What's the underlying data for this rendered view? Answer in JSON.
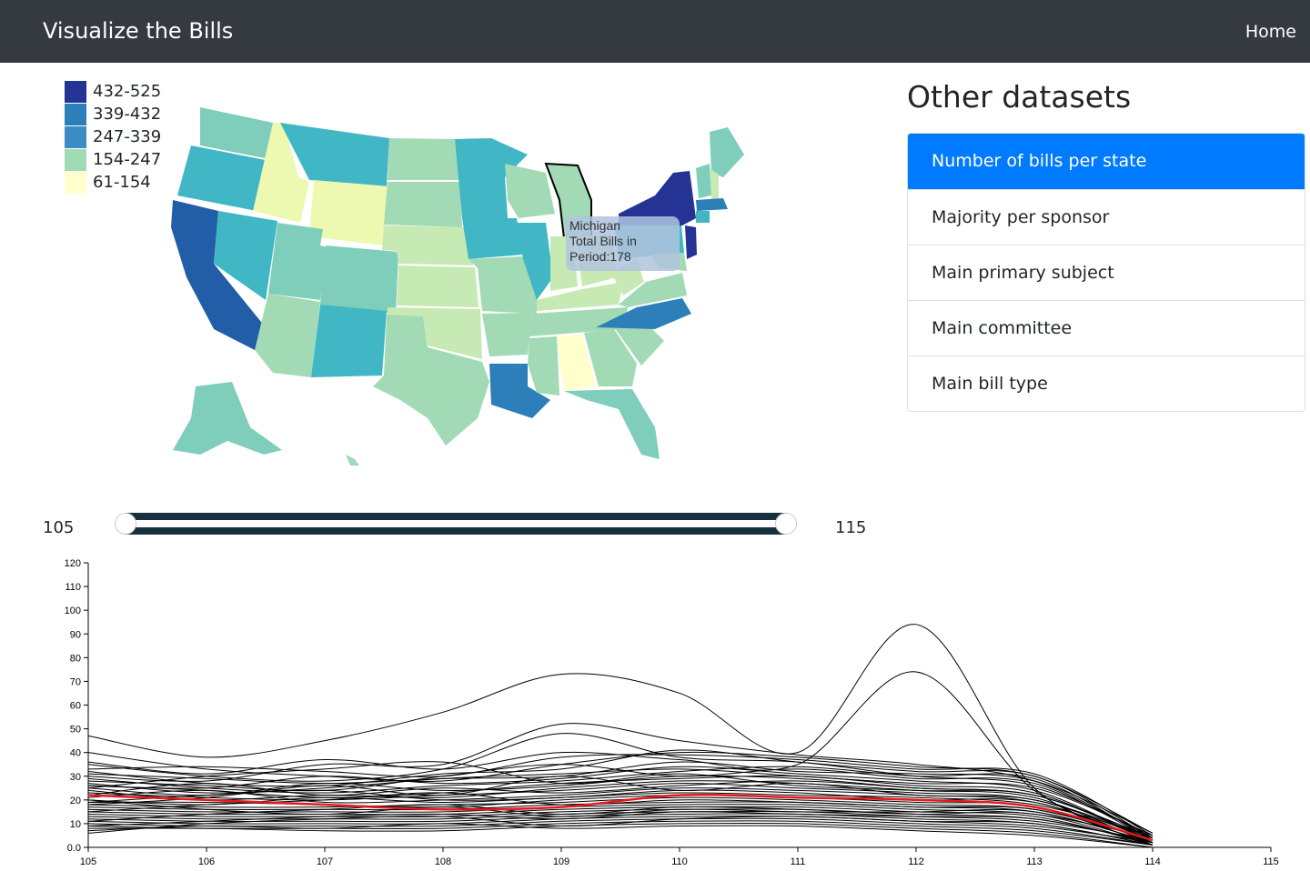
{
  "navbar": {
    "brand": "Visualize the Bills",
    "home": "Home"
  },
  "legend": [
    {
      "label": "432-525",
      "color": "#253494"
    },
    {
      "label": "339-432",
      "color": "#2c7fb8"
    },
    {
      "label": "247-339",
      "color": "#3b8cc4"
    },
    {
      "label": "154-247",
      "color": "#a1dab4"
    },
    {
      "label": "61-154",
      "color": "#ffffcc"
    }
  ],
  "tooltip": {
    "line1": "Michigan",
    "line2": "Total Bills in",
    "line3": "Period:178"
  },
  "sidebar": {
    "title": "Other datasets",
    "items": [
      {
        "label": "Number of bills per state",
        "active": true
      },
      {
        "label": "Majority per sponsor",
        "active": false
      },
      {
        "label": "Main primary subject",
        "active": false
      },
      {
        "label": "Main committee",
        "active": false
      },
      {
        "label": "Main bill type",
        "active": false
      }
    ]
  },
  "slider": {
    "min": "105",
    "max": "115"
  },
  "chart_data": {
    "type": "line",
    "x": [
      105,
      106,
      107,
      108,
      109,
      110,
      111,
      112,
      113,
      114
    ],
    "xticks": [
      "105",
      "106",
      "107",
      "108",
      "109",
      "110",
      "111",
      "112",
      "113",
      "114",
      "115"
    ],
    "yticks": [
      "0.0",
      "10",
      "20",
      "30",
      "40",
      "50",
      "60",
      "70",
      "80",
      "90",
      "100",
      "110",
      "120"
    ],
    "xlim": [
      105,
      115
    ],
    "ylim": [
      0,
      120
    ],
    "highlight_color": "#e41a1c",
    "series": [
      {
        "values": [
          22,
          20,
          18,
          16,
          17,
          22,
          21,
          20,
          17,
          3
        ],
        "highlight": true
      },
      {
        "values": [
          47,
          38,
          45,
          57,
          73,
          65,
          40,
          94,
          25,
          3
        ]
      },
      {
        "values": [
          36,
          31,
          37,
          33,
          40,
          37,
          35,
          74,
          24,
          2
        ]
      },
      {
        "values": [
          30,
          28,
          35,
          35,
          52,
          45,
          39,
          35,
          28,
          4
        ]
      },
      {
        "values": [
          35,
          30,
          28,
          33,
          48,
          38,
          36,
          30,
          26,
          5
        ]
      },
      {
        "values": [
          40,
          33,
          30,
          28,
          35,
          40,
          38,
          34,
          30,
          6
        ]
      },
      {
        "values": [
          28,
          26,
          24,
          30,
          35,
          30,
          33,
          29,
          27,
          3
        ]
      },
      {
        "values": [
          26,
          25,
          30,
          27,
          29,
          34,
          31,
          28,
          24,
          2
        ]
      },
      {
        "values": [
          25,
          22,
          27,
          24,
          26,
          30,
          29,
          25,
          22,
          4
        ]
      },
      {
        "values": [
          24,
          20,
          22,
          21,
          25,
          28,
          27,
          24,
          21,
          1
        ]
      },
      {
        "values": [
          23,
          21,
          20,
          22,
          24,
          27,
          25,
          23,
          20,
          3
        ]
      },
      {
        "values": [
          21,
          24,
          19,
          20,
          22,
          25,
          24,
          22,
          19,
          2
        ]
      },
      {
        "values": [
          20,
          18,
          21,
          19,
          21,
          23,
          22,
          21,
          18,
          5
        ]
      },
      {
        "values": [
          19,
          19,
          18,
          17,
          20,
          22,
          21,
          19,
          17,
          1
        ]
      },
      {
        "values": [
          18,
          17,
          17,
          18,
          19,
          21,
          20,
          18,
          16,
          3
        ]
      },
      {
        "values": [
          17,
          16,
          16,
          16,
          18,
          19,
          19,
          17,
          15,
          2
        ]
      },
      {
        "values": [
          16,
          15,
          15,
          15,
          17,
          18,
          18,
          16,
          14,
          4
        ]
      },
      {
        "values": [
          15,
          14,
          14,
          14,
          16,
          17,
          17,
          15,
          13,
          1
        ]
      },
      {
        "values": [
          14,
          13,
          13,
          13,
          15,
          16,
          16,
          14,
          12,
          2
        ]
      },
      {
        "values": [
          13,
          12,
          12,
          12,
          14,
          15,
          15,
          13,
          11,
          3
        ]
      },
      {
        "values": [
          12,
          11,
          11,
          11,
          13,
          14,
          14,
          12,
          10,
          1
        ]
      },
      {
        "values": [
          11,
          10,
          10,
          10,
          12,
          13,
          13,
          11,
          9,
          2
        ]
      },
      {
        "values": [
          10,
          9,
          9,
          9,
          11,
          12,
          12,
          10,
          8,
          1
        ]
      },
      {
        "values": [
          9,
          8,
          8,
          8,
          10,
          11,
          11,
          9,
          7,
          1
        ]
      },
      {
        "values": [
          8,
          8,
          7,
          7,
          9,
          10,
          10,
          8,
          6,
          0
        ]
      },
      {
        "values": [
          7,
          9,
          8,
          10,
          8,
          9,
          9,
          7,
          5,
          0
        ]
      },
      {
        "values": [
          27,
          23,
          25,
          29,
          31,
          33,
          30,
          27,
          25,
          5
        ]
      },
      {
        "values": [
          32,
          27,
          26,
          31,
          33,
          41,
          36,
          32,
          30,
          4
        ]
      },
      {
        "values": [
          29,
          25,
          23,
          26,
          28,
          32,
          34,
          30,
          29,
          3
        ]
      },
      {
        "values": [
          31,
          29,
          27,
          29,
          30,
          36,
          32,
          31,
          28,
          6
        ]
      },
      {
        "values": [
          26,
          24,
          21,
          23,
          27,
          29,
          30,
          26,
          23,
          2
        ]
      },
      {
        "values": [
          22,
          27,
          22,
          25,
          23,
          26,
          28,
          25,
          22,
          4
        ]
      },
      {
        "values": [
          19,
          22,
          24,
          20,
          21,
          24,
          23,
          20,
          19,
          2
        ]
      },
      {
        "values": [
          15,
          18,
          20,
          23,
          18,
          20,
          19,
          17,
          16,
          3
        ]
      },
      {
        "values": [
          11,
          14,
          16,
          18,
          14,
          17,
          16,
          14,
          14,
          1
        ]
      },
      {
        "values": [
          9,
          11,
          13,
          14,
          12,
          15,
          14,
          13,
          12,
          2
        ]
      },
      {
        "values": [
          6,
          10,
          12,
          13,
          9,
          12,
          13,
          11,
          10,
          1
        ]
      },
      {
        "values": [
          33,
          34,
          32,
          30,
          38,
          39,
          37,
          33,
          31,
          5
        ]
      },
      {
        "values": [
          25,
          30,
          33,
          36,
          27,
          31,
          26,
          24,
          22,
          3
        ]
      },
      {
        "values": [
          20,
          16,
          14,
          17,
          13,
          16,
          15,
          15,
          15,
          2
        ]
      },
      {
        "values": [
          18,
          21,
          26,
          22,
          30,
          24,
          27,
          22,
          20,
          4
        ]
      }
    ]
  }
}
